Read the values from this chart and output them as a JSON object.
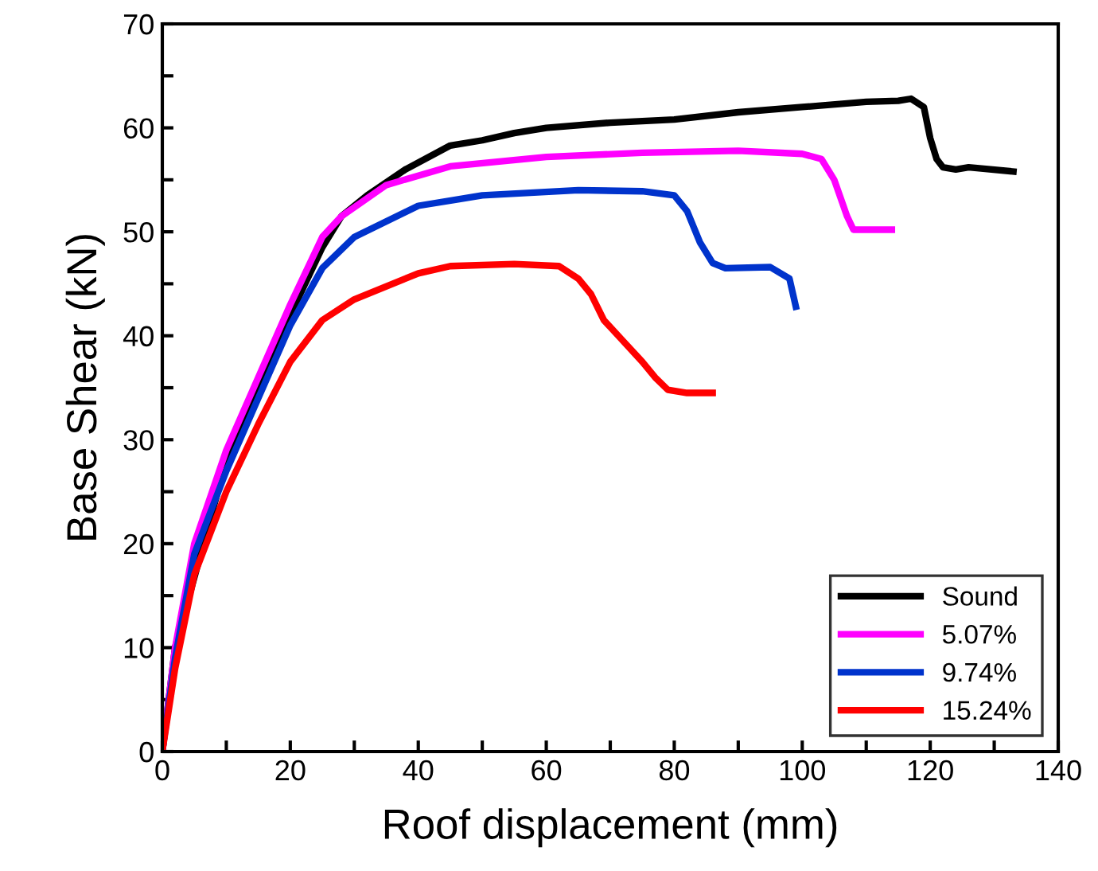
{
  "chart_data": {
    "type": "line",
    "xlabel": "Roof displacement (mm)",
    "ylabel": "Base Shear (kN)",
    "xlim": [
      0,
      140
    ],
    "ylim": [
      0,
      70
    ],
    "xticks": [
      0,
      {
        "value": 10,
        "label": null
      },
      20,
      {
        "value": 30,
        "label": null
      },
      40,
      {
        "value": 50,
        "label": null
      },
      60,
      {
        "value": 70,
        "label": null
      },
      80,
      {
        "value": 90,
        "label": null
      },
      100,
      {
        "value": 110,
        "label": null
      },
      120,
      {
        "value": 130,
        "label": null
      },
      140
    ],
    "yticks": [
      0,
      {
        "value": 5,
        "label": null
      },
      10,
      {
        "value": 15,
        "label": null
      },
      20,
      {
        "value": 25,
        "label": null
      },
      30,
      {
        "value": 35,
        "label": null
      },
      40,
      {
        "value": 45,
        "label": null
      },
      50,
      {
        "value": 55,
        "label": null
      },
      60,
      {
        "value": 65,
        "label": null
      },
      70
    ],
    "grid": false,
    "legend": "bottom right",
    "marker": "none",
    "line_style": "solid",
    "series": [
      {
        "name": "Sound",
        "color": "#000000",
        "x": [
          0,
          2,
          10,
          15,
          20,
          25,
          28,
          32,
          38,
          45,
          50,
          55,
          60,
          70,
          80,
          90,
          100,
          110,
          115,
          117,
          119,
          120,
          121,
          122,
          124,
          126,
          133
        ],
        "values": [
          0,
          10,
          28,
          35,
          42,
          48.5,
          51.5,
          53.5,
          56,
          58.3,
          58.8,
          59.5,
          60,
          60.5,
          60.8,
          61.5,
          62,
          62.5,
          62.6,
          62.8,
          62,
          59,
          57,
          56.2,
          56,
          56.2,
          55.8
        ]
      },
      {
        "name": "5.07%",
        "color": "#ff00ff",
        "x": [
          0,
          2,
          5,
          10,
          15,
          20,
          25,
          28,
          35,
          45,
          60,
          75,
          90,
          100,
          103,
          105,
          107,
          108,
          110,
          114
        ],
        "values": [
          0,
          10,
          20,
          29,
          36,
          43,
          49.5,
          51.5,
          54.5,
          56.3,
          57.2,
          57.6,
          57.8,
          57.5,
          57,
          55,
          51.5,
          50.2,
          50.2,
          50.2
        ]
      },
      {
        "name": "9.74%",
        "color": "#0033cc",
        "x": [
          0,
          2,
          5,
          10,
          15,
          20,
          25,
          30,
          40,
          50,
          65,
          75,
          80,
          82,
          84,
          86,
          88,
          95,
          98,
          99
        ],
        "values": [
          0,
          9,
          19,
          27,
          34,
          41,
          46.5,
          49.5,
          52.5,
          53.5,
          54,
          53.9,
          53.5,
          52,
          49,
          47,
          46.5,
          46.6,
          45.5,
          42.8
        ]
      },
      {
        "name": "15.24%",
        "color": "#ff0000",
        "x": [
          0,
          2,
          5,
          10,
          15,
          20,
          25,
          30,
          40,
          45,
          55,
          62,
          65,
          67,
          69,
          72,
          75,
          77,
          79,
          82,
          86
        ],
        "values": [
          0,
          8,
          17,
          25,
          31.5,
          37.5,
          41.5,
          43.5,
          46,
          46.7,
          46.9,
          46.7,
          45.5,
          44,
          41.5,
          39.5,
          37.5,
          36,
          34.8,
          34.5,
          34.5
        ]
      }
    ]
  }
}
